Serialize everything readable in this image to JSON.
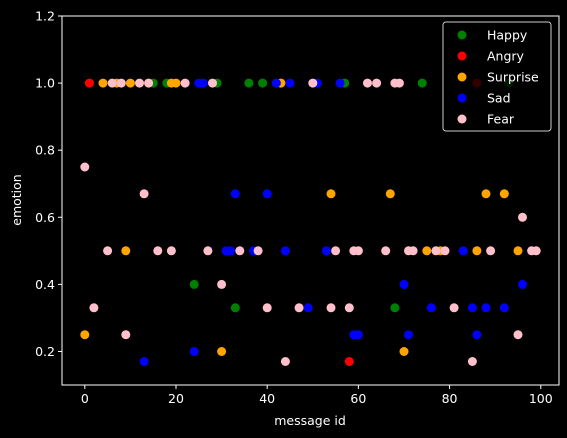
{
  "chart_data": {
    "type": "scatter",
    "xlabel": "message id",
    "ylabel": "emotion",
    "xlim": [
      -5,
      104
    ],
    "ylim": [
      0.1,
      1.2
    ],
    "xticks": [
      0,
      20,
      40,
      60,
      80,
      100
    ],
    "yticks": [
      0.2,
      0.4,
      0.6,
      0.8,
      1.0,
      1.2
    ],
    "xtick_labels": [
      "0",
      "20",
      "40",
      "60",
      "80",
      "100"
    ],
    "ytick_labels": [
      "0.2",
      "0.4",
      "0.6",
      "0.8",
      "1.0",
      "1.2"
    ],
    "grid": false,
    "legend_position": "top-right",
    "series": [
      {
        "name": "Happy",
        "color": "#008000",
        "points": [
          [
            15,
            1.0
          ],
          [
            18,
            1.0
          ],
          [
            24,
            0.4
          ],
          [
            29,
            1.0
          ],
          [
            33,
            0.33
          ],
          [
            36,
            1.0
          ],
          [
            39,
            1.0
          ],
          [
            57,
            1.0
          ],
          [
            68,
            0.33
          ],
          [
            74,
            1.0
          ],
          [
            93,
            1.0
          ]
        ]
      },
      {
        "name": "Angry",
        "color": "#ff0000",
        "points": [
          [
            1,
            1.0
          ],
          [
            14,
            1.0
          ],
          [
            43,
            1.0
          ],
          [
            58,
            0.17
          ],
          [
            86,
            1.0
          ]
        ]
      },
      {
        "name": "Surprise",
        "color": "#ffa500",
        "points": [
          [
            0,
            0.25
          ],
          [
            4,
            1.0
          ],
          [
            7,
            1.0
          ],
          [
            9,
            0.5
          ],
          [
            10,
            1.0
          ],
          [
            19,
            1.0
          ],
          [
            20,
            1.0
          ],
          [
            30,
            0.2
          ],
          [
            43,
            1.0
          ],
          [
            54,
            0.67
          ],
          [
            67,
            0.67
          ],
          [
            70,
            0.2
          ],
          [
            75,
            0.5
          ],
          [
            78,
            0.5
          ],
          [
            86,
            0.5
          ],
          [
            88,
            0.67
          ],
          [
            92,
            0.67
          ],
          [
            95,
            0.5
          ]
        ]
      },
      {
        "name": "Sad",
        "color": "#0000ff",
        "points": [
          [
            13,
            0.17
          ],
          [
            24,
            0.2
          ],
          [
            25,
            1.0
          ],
          [
            26,
            1.0
          ],
          [
            31,
            0.5
          ],
          [
            32,
            0.5
          ],
          [
            33,
            0.67
          ],
          [
            37,
            0.5
          ],
          [
            40,
            0.67
          ],
          [
            42,
            1.0
          ],
          [
            44,
            0.5
          ],
          [
            45,
            1.0
          ],
          [
            49,
            0.33
          ],
          [
            51,
            1.0
          ],
          [
            53,
            0.5
          ],
          [
            56,
            1.0
          ],
          [
            59,
            0.25
          ],
          [
            60,
            0.25
          ],
          [
            70,
            0.4
          ],
          [
            71,
            0.25
          ],
          [
            76,
            0.33
          ],
          [
            83,
            0.5
          ],
          [
            85,
            0.33
          ],
          [
            86,
            0.25
          ],
          [
            88,
            0.33
          ],
          [
            92,
            0.33
          ],
          [
            96,
            0.4
          ]
        ]
      },
      {
        "name": "Fear",
        "color": "#ffc0cb",
        "points": [
          [
            0,
            0.75
          ],
          [
            2,
            0.33
          ],
          [
            5,
            0.5
          ],
          [
            6,
            1.0
          ],
          [
            8,
            1.0
          ],
          [
            9,
            0.25
          ],
          [
            12,
            1.0
          ],
          [
            13,
            0.67
          ],
          [
            14,
            1.0
          ],
          [
            16,
            0.5
          ],
          [
            19,
            0.5
          ],
          [
            22,
            1.0
          ],
          [
            27,
            0.5
          ],
          [
            28,
            1.0
          ],
          [
            30,
            0.4
          ],
          [
            34,
            0.5
          ],
          [
            38,
            0.5
          ],
          [
            40,
            0.33
          ],
          [
            44,
            0.17
          ],
          [
            47,
            0.33
          ],
          [
            50,
            1.0
          ],
          [
            54,
            0.33
          ],
          [
            55,
            0.5
          ],
          [
            58,
            0.33
          ],
          [
            59,
            0.5
          ],
          [
            60,
            0.5
          ],
          [
            62,
            1.0
          ],
          [
            64,
            1.0
          ],
          [
            66,
            0.5
          ],
          [
            68,
            1.0
          ],
          [
            69,
            1.0
          ],
          [
            71,
            0.5
          ],
          [
            72,
            0.5
          ],
          [
            77,
            0.5
          ],
          [
            79,
            0.5
          ],
          [
            81,
            0.33
          ],
          [
            85,
            0.17
          ],
          [
            89,
            0.5
          ],
          [
            95,
            0.25
          ],
          [
            96,
            0.6
          ],
          [
            98,
            0.5
          ],
          [
            99,
            0.5
          ]
        ]
      }
    ]
  }
}
